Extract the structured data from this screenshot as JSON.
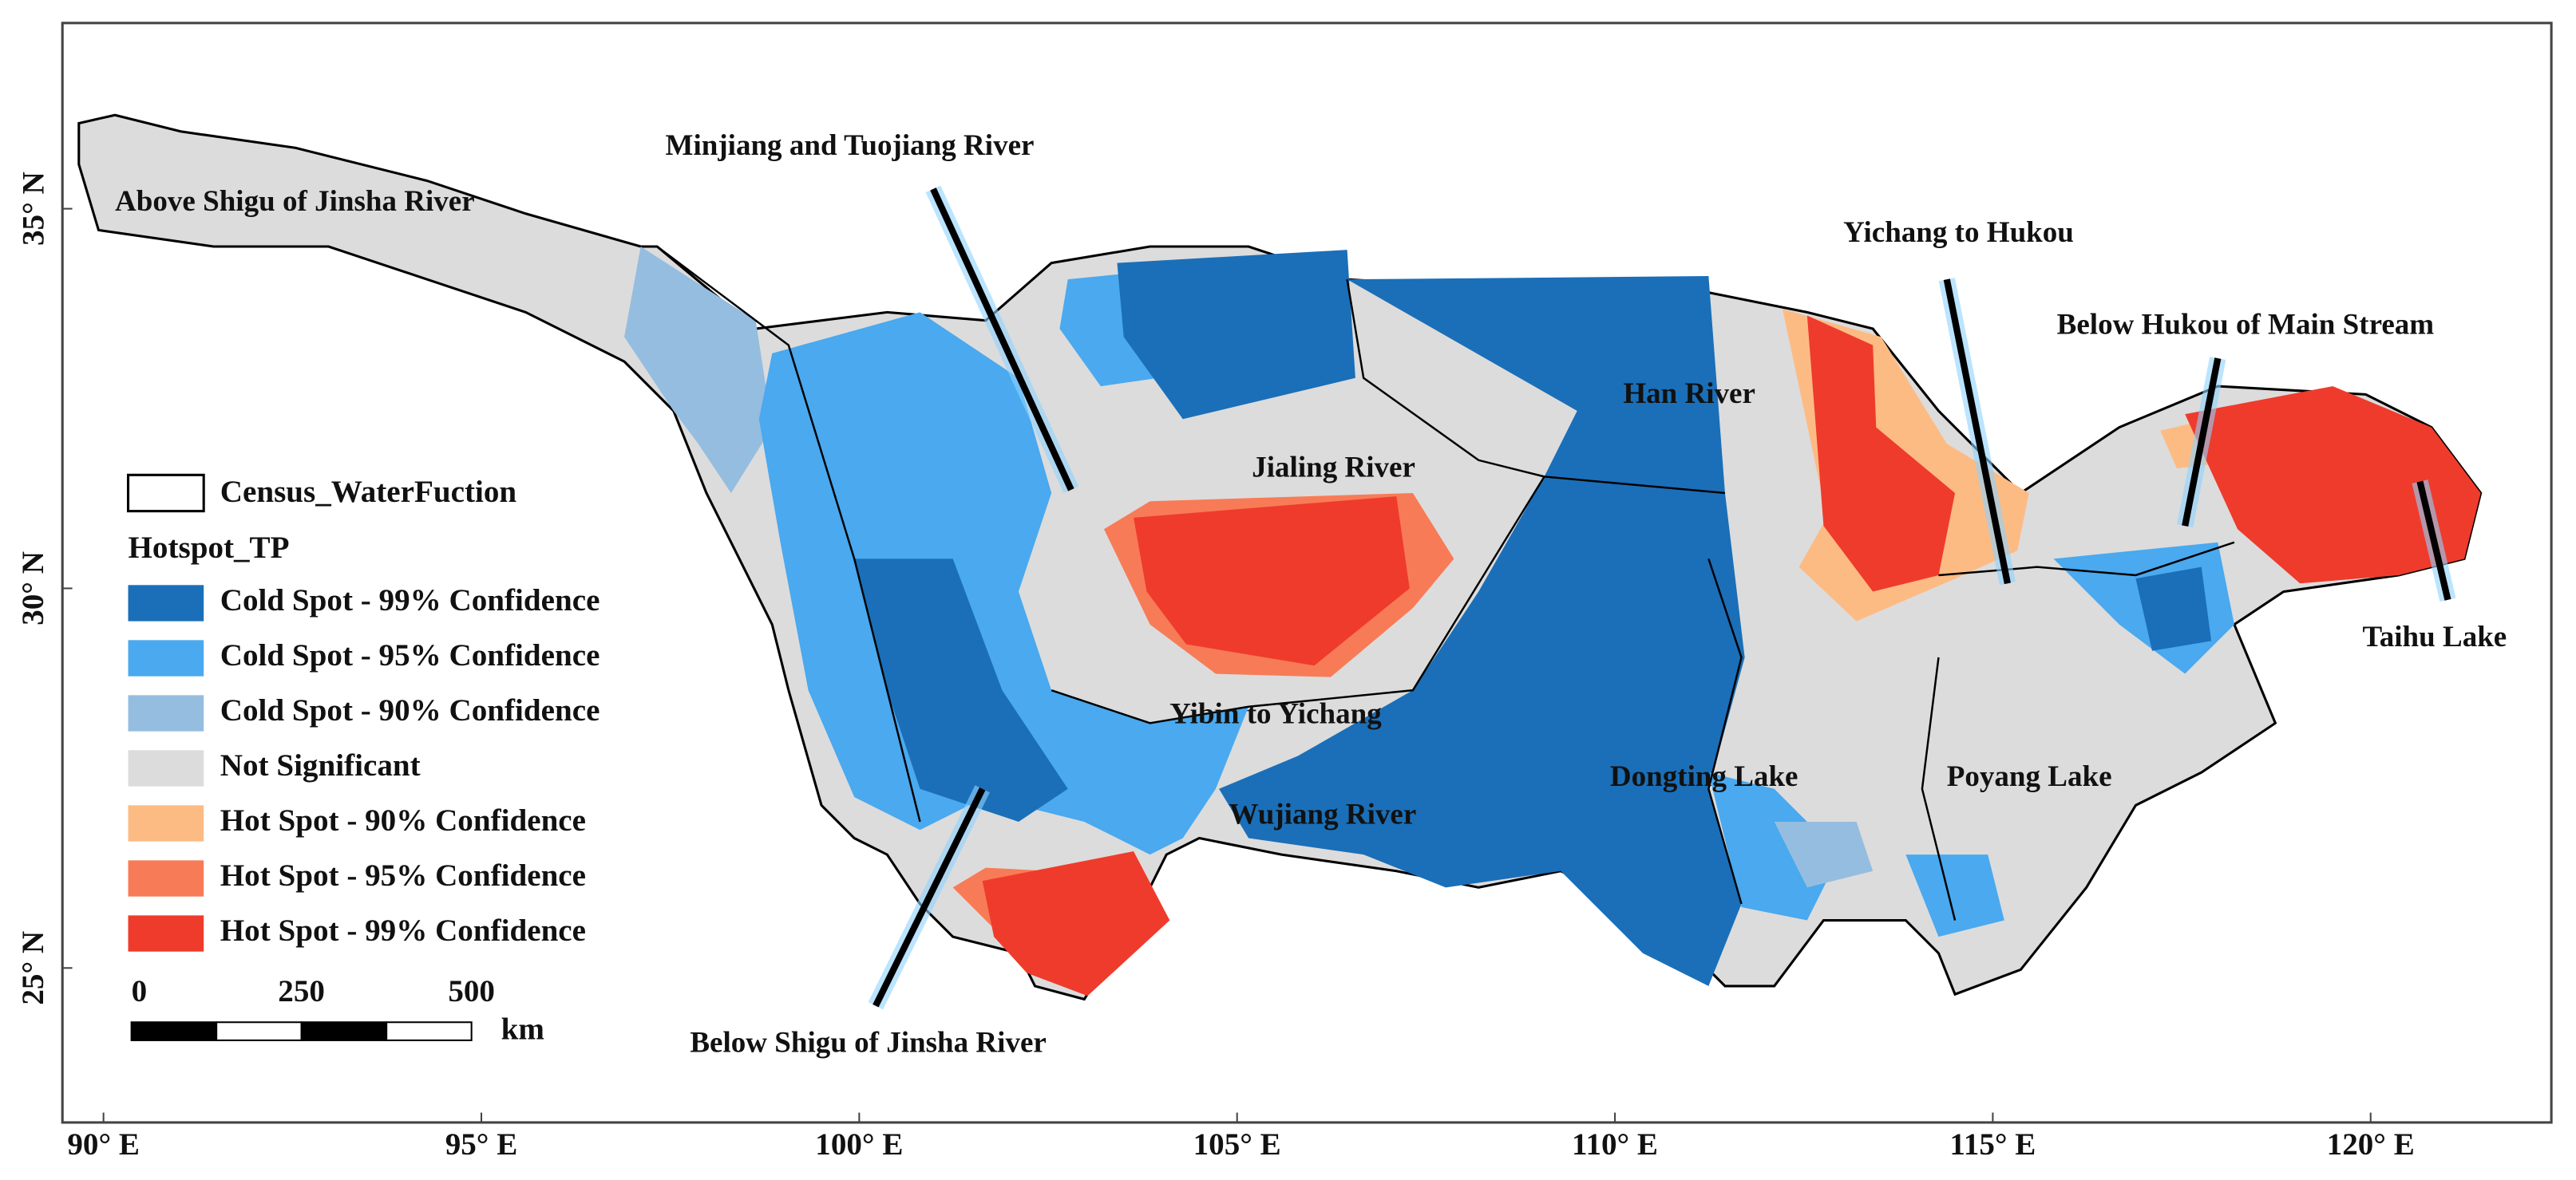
{
  "map": {
    "region_labels": [
      "Above Shigu of Jinsha River",
      "Minjiang and Tuojiang River",
      "Jialing River",
      "Han River",
      "Yichang to Hukou",
      "Below Hukou of Main Stream",
      "Taihu Lake",
      "Yibin to Yichang",
      "Wujiang River",
      "Dongting Lake",
      "Poyang Lake",
      "Below Shigu  of Jinsha River"
    ],
    "x_ticks": [
      {
        "value": 90,
        "label": "90° E"
      },
      {
        "value": 95,
        "label": "95° E"
      },
      {
        "value": 100,
        "label": "100° E"
      },
      {
        "value": 105,
        "label": "105° E"
      },
      {
        "value": 110,
        "label": "110° E"
      },
      {
        "value": 115,
        "label": "115° E"
      },
      {
        "value": 120,
        "label": "120° E"
      }
    ],
    "y_ticks": [
      {
        "value": 25,
        "label": "25° N"
      },
      {
        "value": 30,
        "label": "30° N"
      },
      {
        "value": 35,
        "label": "35° N"
      }
    ],
    "legend": {
      "boundary": "Census_WaterFuction",
      "title": "Hotspot_TP",
      "items": [
        {
          "label": "Cold Spot - 99% Confidence",
          "color": "#1a6fb8"
        },
        {
          "label": "Cold Spot - 95% Confidence",
          "color": "#4aa9ef"
        },
        {
          "label": "Cold Spot - 90% Confidence",
          "color": "#95bde0"
        },
        {
          "label": "Not Significant",
          "color": "#dcdcdc"
        },
        {
          "label": "Hot Spot - 90% Confidence",
          "color": "#fdbb84"
        },
        {
          "label": "Hot Spot - 95% Confidence",
          "color": "#f87b57"
        },
        {
          "label": "Hot Spot - 99% Confidence",
          "color": "#ef3b2c"
        }
      ]
    },
    "scale_bar": {
      "ticks": [
        0,
        250,
        500
      ],
      "unit": "km"
    }
  }
}
